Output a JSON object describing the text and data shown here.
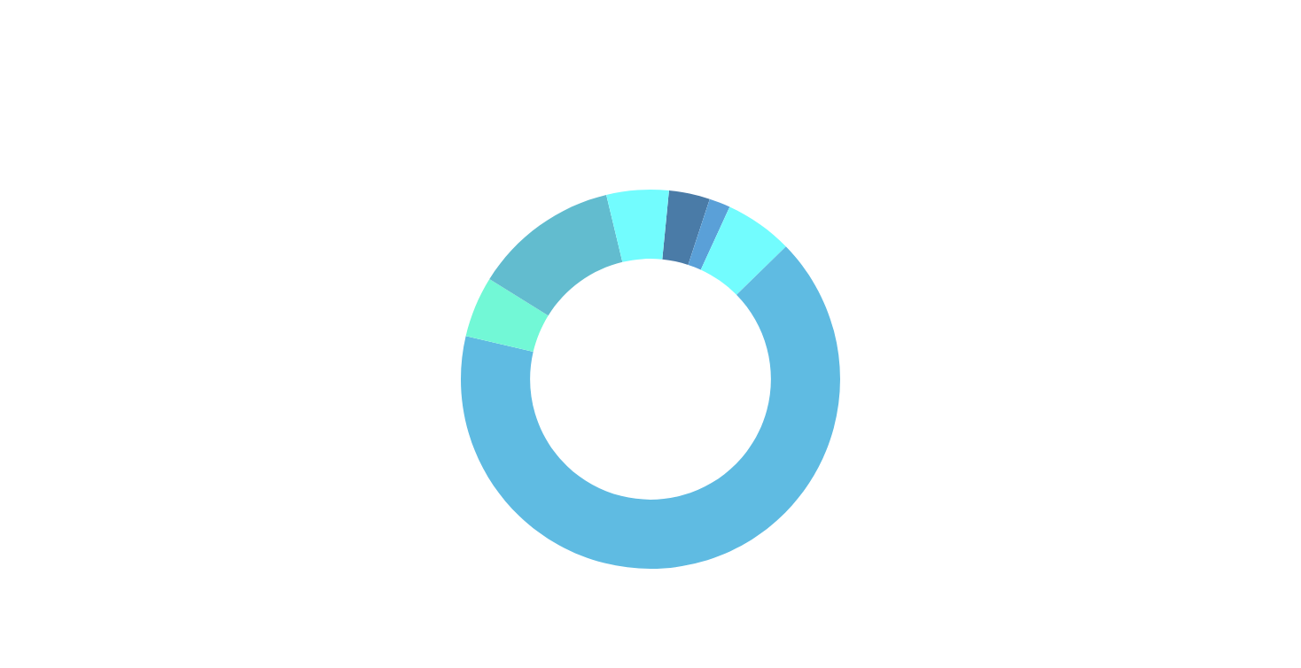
{
  "chart_data": {
    "type": "donut",
    "categories": [
      null,
      null,
      null,
      null,
      null,
      null,
      null
    ],
    "values": [
      3.5,
      1.8,
      5.8,
      66.0,
      5.2,
      12.4,
      5.3
    ],
    "colors": [
      "#4a7ba7",
      "#5aa0d8",
      "#72fcfe",
      "#5fbbe2",
      "#72f8d6",
      "#62bccf",
      "#72fcfe"
    ]
  }
}
